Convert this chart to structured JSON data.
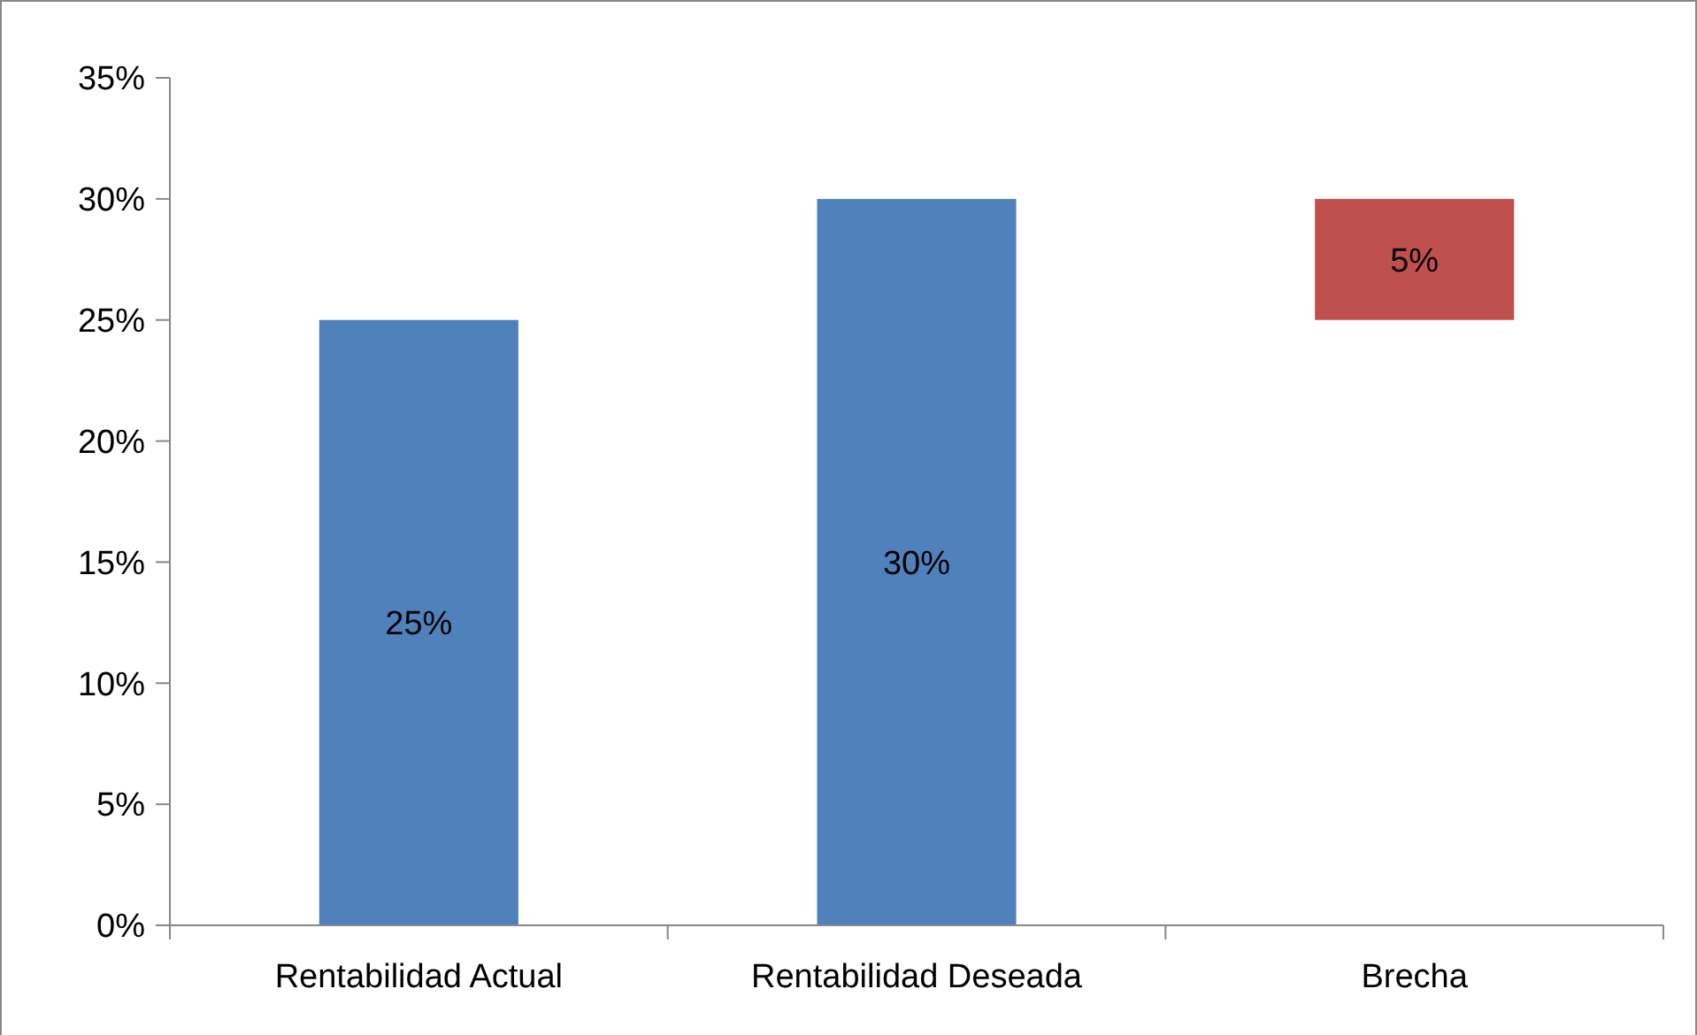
{
  "chart_data": {
    "type": "bar",
    "categories": [
      "Rentabilidad Actual",
      "Rentabilidad Deseada",
      "Brecha"
    ],
    "values": [
      25,
      30,
      5
    ],
    "base": [
      0,
      0,
      25
    ],
    "colors": [
      "#4f81bd",
      "#4f81bd",
      "#c0504d"
    ],
    "value_labels": [
      "25%",
      "30%",
      "5%"
    ],
    "ylim": [
      0,
      35
    ],
    "yticks": [
      {
        "value": 0,
        "label": "0%"
      },
      {
        "value": 5,
        "label": "5%"
      },
      {
        "value": 10,
        "label": "10%"
      },
      {
        "value": 15,
        "label": "15%"
      },
      {
        "value": 20,
        "label": "20%"
      },
      {
        "value": 25,
        "label": "25%"
      },
      {
        "value": 30,
        "label": "30%"
      },
      {
        "value": 35,
        "label": "35%"
      }
    ],
    "grid": false
  }
}
